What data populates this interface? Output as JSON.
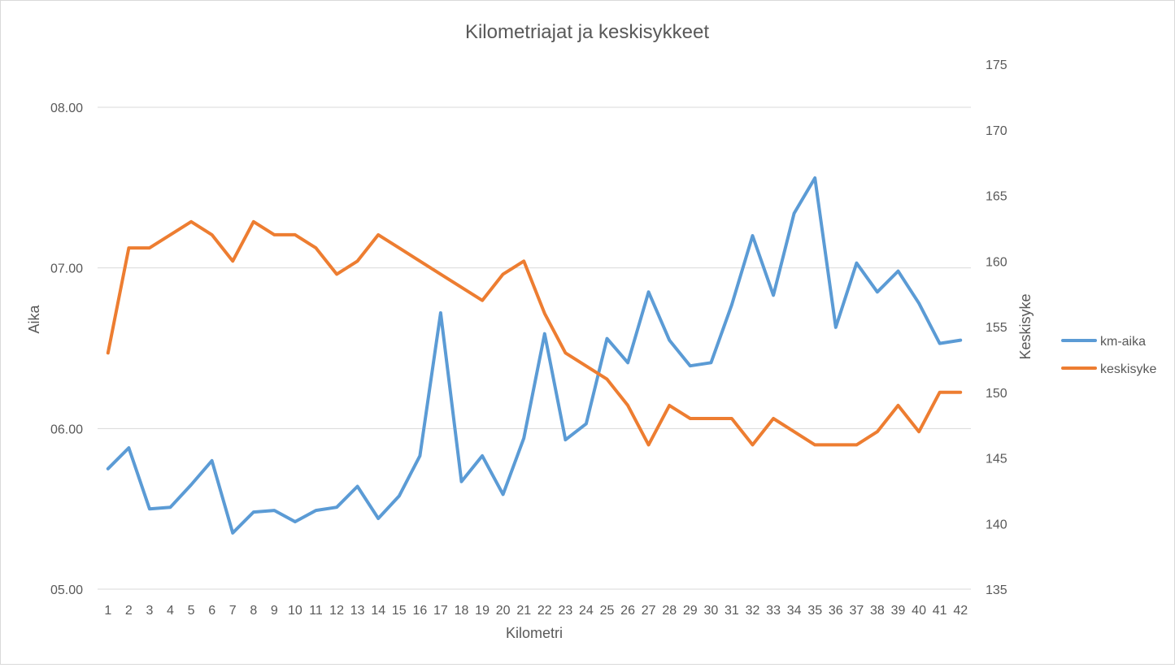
{
  "chart_data": {
    "type": "line",
    "title": "Kilometriajat ja keskisykkeet",
    "xlabel": "Kilometri",
    "ylabel_left": "Aika",
    "ylabel_right": "Keskisyke",
    "categories": [
      "1",
      "2",
      "3",
      "4",
      "5",
      "6",
      "7",
      "8",
      "9",
      "10",
      "11",
      "12",
      "13",
      "14",
      "15",
      "16",
      "17",
      "18",
      "19",
      "20",
      "21",
      "22",
      "23",
      "24",
      "25",
      "26",
      "27",
      "28",
      "29",
      "30",
      "31",
      "32",
      "33",
      "34",
      "35",
      "36",
      "37",
      "38",
      "39",
      "40",
      "41",
      "42"
    ],
    "y_left": {
      "ticks": [
        "05.00",
        "06.00",
        "07.00",
        "08.00"
      ],
      "min": 5.0,
      "max": 8.0
    },
    "y_right": {
      "ticks": [
        "135",
        "140",
        "145",
        "150",
        "155",
        "160",
        "165",
        "170",
        "175"
      ],
      "min": 135,
      "max": 175
    },
    "gridlines": true,
    "legend_position": "right",
    "series": [
      {
        "name": "km-aika",
        "axis": "left",
        "color": "#5b9bd5",
        "values": [
          5.75,
          5.88,
          5.5,
          5.51,
          5.65,
          5.8,
          5.35,
          5.48,
          5.49,
          5.42,
          5.49,
          5.51,
          5.64,
          5.44,
          5.58,
          5.83,
          6.72,
          5.67,
          5.83,
          5.59,
          5.94,
          6.59,
          5.93,
          6.03,
          6.56,
          6.41,
          6.85,
          6.55,
          6.39,
          6.41,
          6.77,
          7.2,
          6.83,
          7.34,
          7.56,
          6.63,
          7.03,
          6.85,
          6.98,
          6.78,
          6.53,
          6.55
        ]
      },
      {
        "name": "keskisyke",
        "axis": "right",
        "color": "#ed7d31",
        "values": [
          153,
          161,
          161,
          162,
          163,
          162,
          160,
          163,
          162,
          162,
          161,
          159,
          160,
          162,
          161,
          160,
          159,
          158,
          157,
          159,
          160,
          156,
          153,
          152,
          151,
          149,
          146,
          149,
          148,
          148,
          148,
          146,
          148,
          147,
          146,
          146,
          146,
          147,
          149,
          147,
          150,
          150
        ]
      }
    ]
  }
}
